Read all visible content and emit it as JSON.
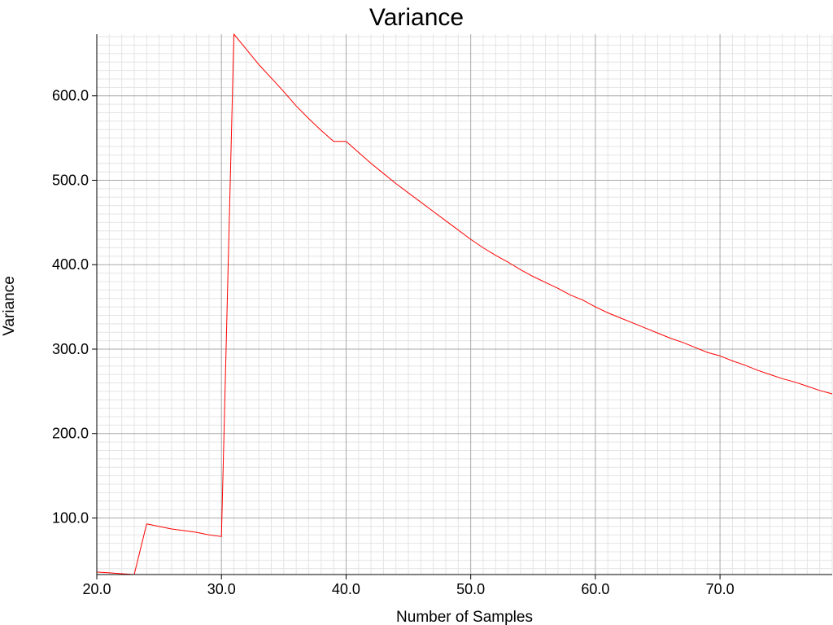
{
  "chart_data": {
    "type": "line",
    "title": "Variance",
    "xlabel": "Number of Samples",
    "ylabel": "Variance",
    "xlim": [
      20,
      79
    ],
    "ylim": [
      33,
      673
    ],
    "x_ticks": [
      "20.0",
      "30.0",
      "40.0",
      "50.0",
      "60.0",
      "70.0"
    ],
    "y_ticks": [
      "100.0",
      "200.0",
      "300.0",
      "400.0",
      "500.0",
      "600.0"
    ],
    "grid": true,
    "legend": "none",
    "series": [
      {
        "color": "#ff0000",
        "x": [
          20,
          21,
          22,
          23,
          24,
          25,
          26,
          27,
          28,
          29,
          30,
          31,
          32,
          33,
          34,
          35,
          36,
          37,
          38,
          39,
          40,
          41,
          42,
          43,
          44,
          45,
          46,
          47,
          48,
          49,
          50,
          51,
          52,
          53,
          54,
          55,
          56,
          57,
          58,
          59,
          60,
          61,
          62,
          63,
          64,
          65,
          66,
          67,
          68,
          69,
          70,
          71,
          72,
          73,
          74,
          75,
          76,
          77,
          78,
          79
        ],
        "y": [
          36,
          35,
          34,
          33,
          93,
          90,
          87,
          85,
          83,
          80,
          78,
          673,
          655,
          637,
          621,
          605,
          588,
          573,
          559,
          546,
          546,
          533,
          520,
          508,
          496,
          485,
          474,
          463,
          452,
          441,
          430,
          420,
          411,
          403,
          394,
          386,
          379,
          372,
          364,
          358,
          350,
          343,
          337,
          331,
          325,
          319,
          313,
          308,
          302,
          296,
          292,
          286,
          281,
          275,
          270,
          265,
          261,
          256,
          251,
          247
        ]
      }
    ]
  }
}
